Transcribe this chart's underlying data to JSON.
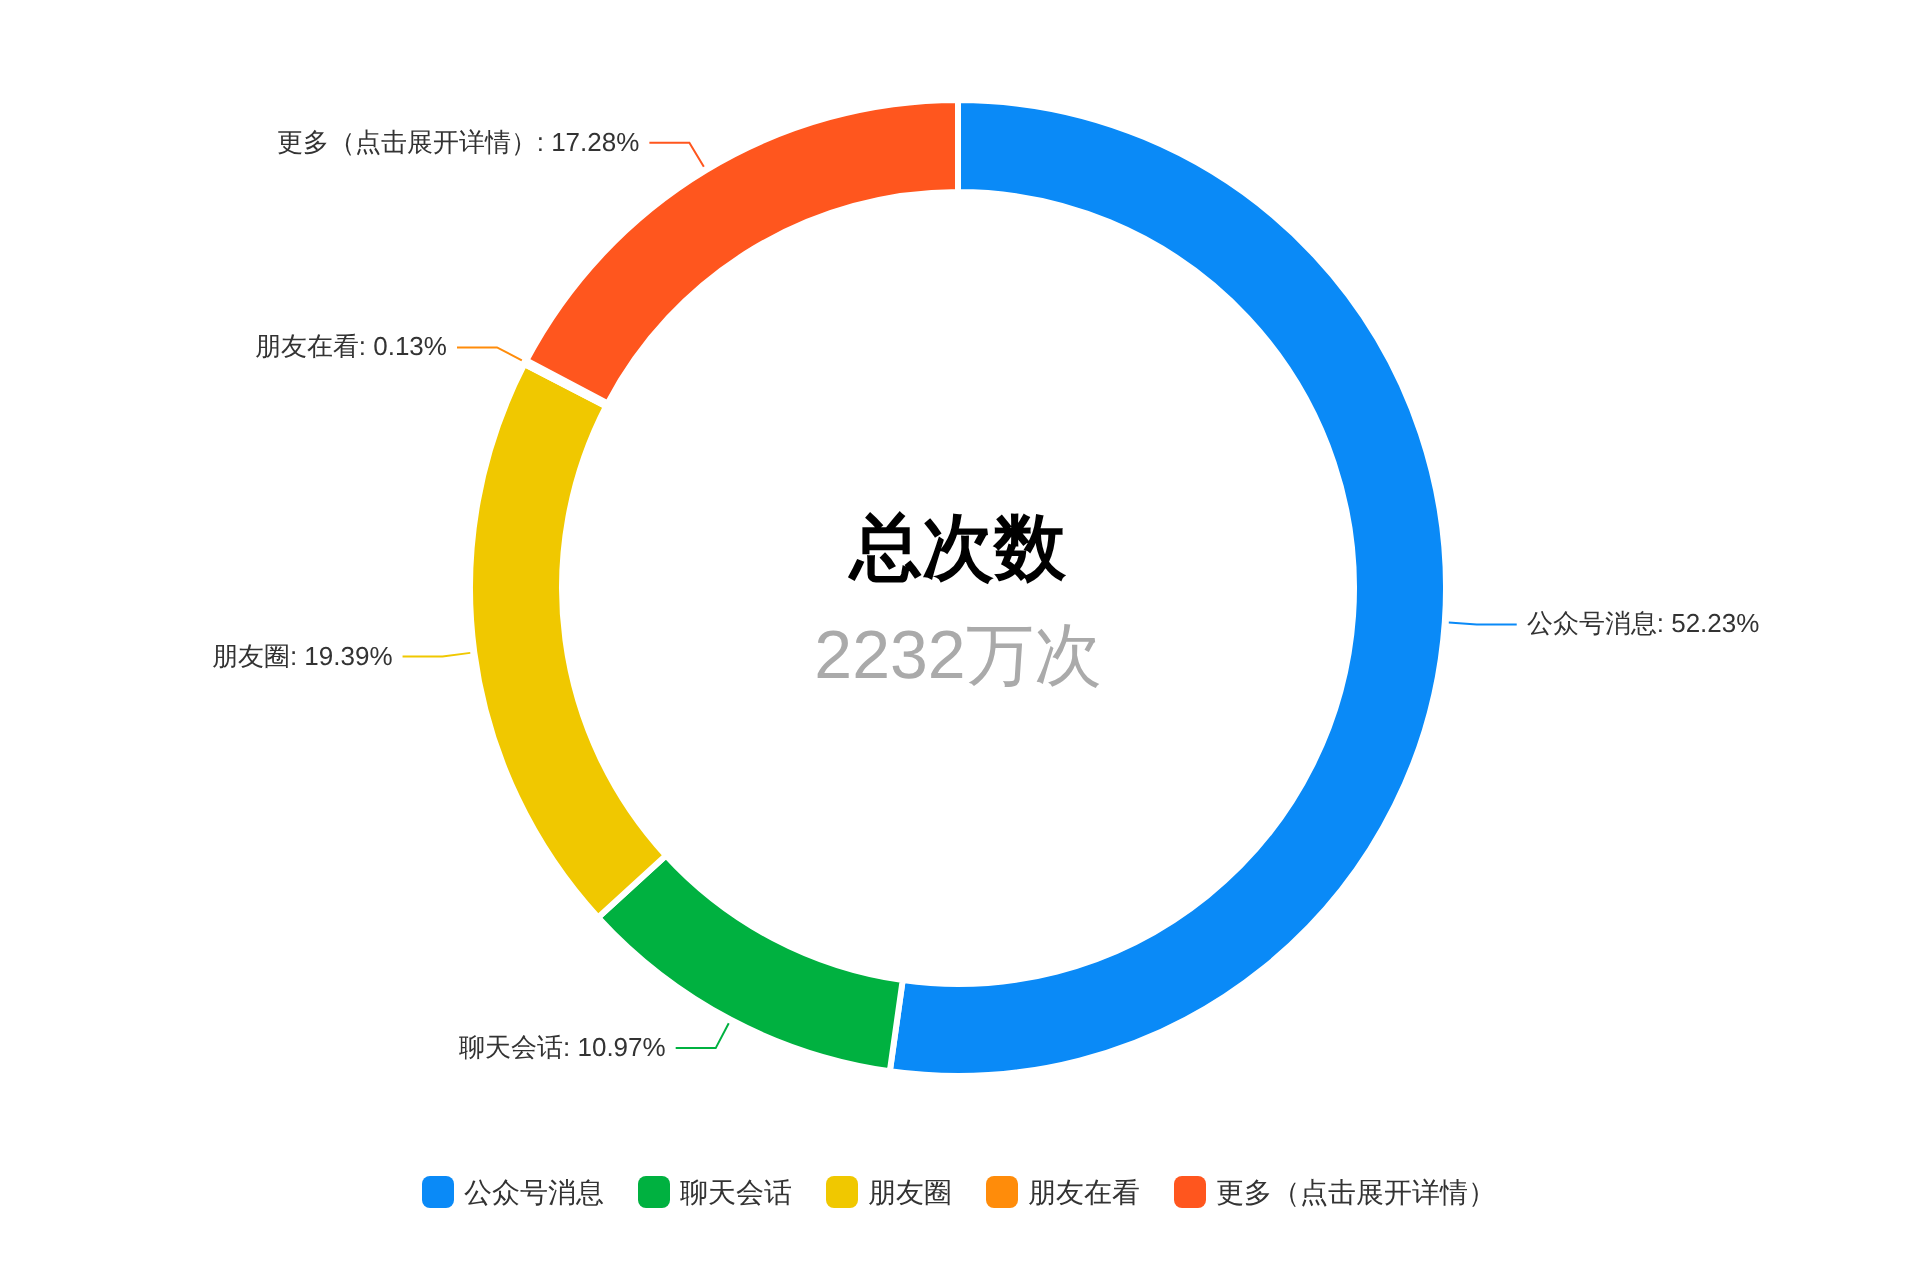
{
  "chart_data": {
    "type": "donut",
    "title": "总次数",
    "subtitle": "2232万次",
    "categories": [
      "公众号消息",
      "聊天会话",
      "朋友圈",
      "朋友在看",
      "更多（点击展开详情）"
    ],
    "values": [
      52.23,
      10.97,
      19.39,
      0.13,
      17.28
    ],
    "colors": [
      "#0a8af7",
      "#00b140",
      "#f0c800",
      "#ff8c0a",
      "#ff561e"
    ],
    "value_labels": [
      "公众号消息: 52.23%",
      "聊天会话: 10.97%",
      "朋友圈: 19.39%",
      "朋友在看: 0.13%",
      "更多（点击展开详情）: 17.28%"
    ],
    "legend": "bottom"
  }
}
